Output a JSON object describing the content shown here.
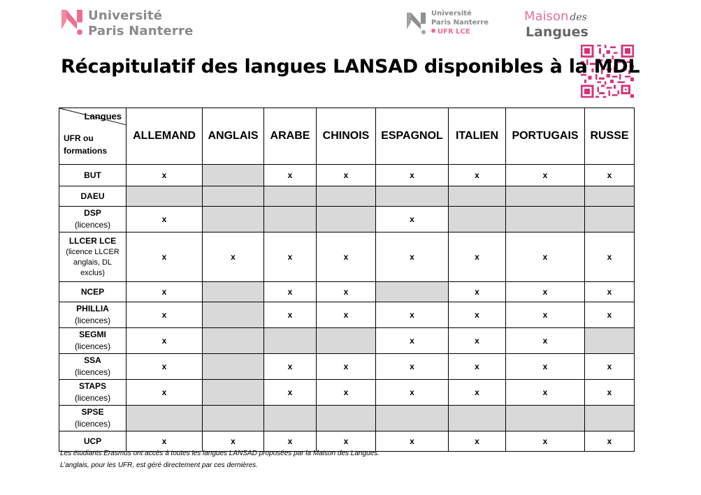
{
  "logos": {
    "upn": {
      "line1": "Université",
      "line2": "Paris Nanterre"
    },
    "ufr": {
      "line1": "Université",
      "line2": "Paris Nanterre",
      "line3": "UFR LCE"
    },
    "mdl": {
      "word1": "Maison",
      "word2": "des",
      "word3": "Langues"
    }
  },
  "colors": {
    "brand_pink": "#ec6f8f",
    "grey_cell": "#d9d9d9",
    "logo_grey": "#8a8a8a"
  },
  "title": "Récapitulatif des langues LANSAD disponibles à la MDL",
  "table": {
    "corner_top": "Langues",
    "corner_bottom_1": "UFR ou",
    "corner_bottom_2": "formations",
    "languages": [
      "ALLEMAND",
      "ANGLAIS",
      "ARABE",
      "CHINOIS",
      "ESPAGNOL",
      "ITALIEN",
      "PORTUGAIS",
      "RUSSE"
    ],
    "rows": [
      {
        "name": "BUT",
        "sub": [],
        "cells": [
          "x",
          "",
          "x",
          "x",
          "x",
          "x",
          "x",
          "x"
        ]
      },
      {
        "name": "DAEU",
        "sub": [],
        "cells": [
          "",
          "",
          "",
          "",
          "",
          "",
          "",
          ""
        ]
      },
      {
        "name": "DSP",
        "sub": [
          "(licences)"
        ],
        "cells": [
          "x",
          "",
          "",
          "",
          "x",
          "",
          "",
          ""
        ]
      },
      {
        "name": "LLCER LCE",
        "sub": [
          "(licence LLCER",
          "anglais, DL",
          "exclus)"
        ],
        "cells": [
          "x",
          "x",
          "x",
          "x",
          "x",
          "x",
          "x",
          "x"
        ]
      },
      {
        "name": "NCEP",
        "sub": [],
        "cells": [
          "x",
          "",
          "x",
          "x",
          "",
          "x",
          "x",
          "x"
        ]
      },
      {
        "name": "PHILLIA",
        "sub": [
          "(licences)"
        ],
        "cells": [
          "x",
          "",
          "x",
          "x",
          "x",
          "x",
          "x",
          "x"
        ]
      },
      {
        "name": "SEGMI",
        "sub": [
          "(licences)"
        ],
        "cells": [
          "x",
          "",
          "",
          "",
          "x",
          "x",
          "x",
          ""
        ]
      },
      {
        "name": "SSA",
        "sub": [
          "(licences)"
        ],
        "cells": [
          "x",
          "",
          "x",
          "x",
          "x",
          "x",
          "x",
          "x"
        ]
      },
      {
        "name": "STAPS",
        "sub": [
          "(licences)"
        ],
        "cells": [
          "x",
          "",
          "x",
          "x",
          "x",
          "x",
          "x",
          "x"
        ]
      },
      {
        "name": "SPSE",
        "sub": [
          "(licences)"
        ],
        "cells": [
          "",
          "",
          "",
          "",
          "",
          "",
          "",
          ""
        ]
      },
      {
        "name": "UCP",
        "sub": [],
        "cells": [
          "x",
          "x",
          "x",
          "x",
          "x",
          "x",
          "x",
          "x"
        ]
      }
    ]
  },
  "notes": [
    "Les étudiants Erasmus ont accès à toutes les langues LANSAD proposées par la Maison des Langues.",
    "L’anglais, pour les UFR, est géré directement par ces dernières."
  ]
}
